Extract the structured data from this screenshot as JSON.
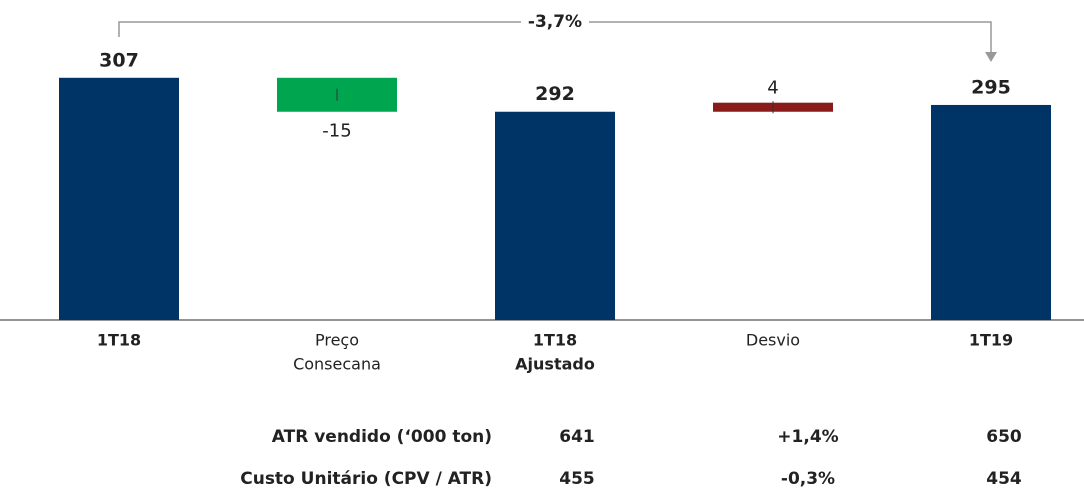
{
  "chart_data": {
    "type": "waterfall",
    "categories": [
      [
        "1T18"
      ],
      [
        "Preço",
        "Consecana"
      ],
      [
        "1T18",
        "Ajustado"
      ],
      [
        "Desvio"
      ],
      [
        "1T19"
      ]
    ],
    "values": [
      307,
      -15,
      292,
      4,
      295
    ],
    "measure": [
      "total",
      "relative",
      "total",
      "relative",
      "total"
    ],
    "colors": [
      "#003366",
      "#00a550",
      "#003366",
      "#8b1a1a",
      "#003366"
    ],
    "ylim": [
      200,
      310
    ],
    "annotation": {
      "text": "-3,7%",
      "from": 0,
      "to": 4
    }
  },
  "table": {
    "rows": [
      [
        "ATR vendido (‘000 ton)",
        641,
        "+1,4%",
        650
      ],
      [
        "Custo Unitário (CPV / ATR)",
        455,
        "-0,3%",
        454
      ]
    ]
  }
}
